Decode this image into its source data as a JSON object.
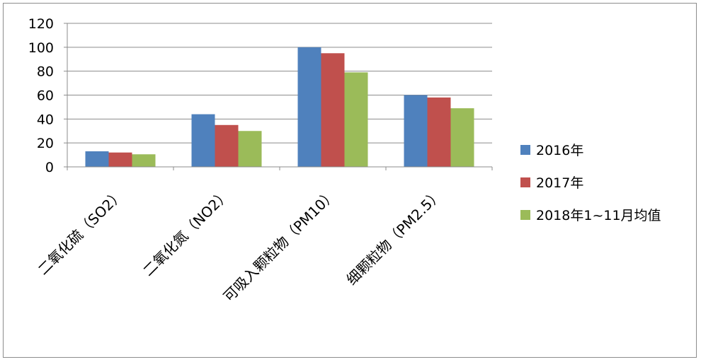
{
  "chart_data": {
    "type": "bar",
    "categories": [
      "二氧化硫（SO2）",
      "二氧化氮（NO2）",
      "可吸入颗粒物（PM10）",
      "细颗粒物（PM2.5）"
    ],
    "series": [
      {
        "name": "2016年",
        "values": [
          13,
          44,
          100,
          60
        ],
        "color": "#4F81BD"
      },
      {
        "name": "2017年",
        "values": [
          12,
          35,
          95,
          58
        ],
        "color": "#C0504D"
      },
      {
        "name": "2018年1~11月均值",
        "values": [
          10.5,
          30,
          79,
          49
        ],
        "color": "#9BBB59"
      }
    ],
    "yticks": [
      "0",
      "20",
      "40",
      "60",
      "80",
      "100",
      "120"
    ],
    "ylim": [
      0,
      120
    ],
    "grid": true,
    "legend_position": "right"
  }
}
